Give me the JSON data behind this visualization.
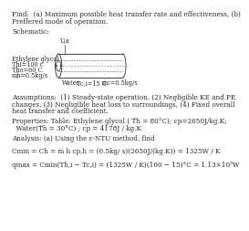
{
  "find_line1": "Find:  (a) Maximum possible heat transfer rate and effectiveness, (b)",
  "find_line2": "Preffered mode of operation.",
  "schematic_label": "Schematic:",
  "assumptions_line1": "Assumptions:  (1) Steady-state operation, (2) Negligible KE and PE",
  "assumptions_line2": "changes, (3) Negligible heat loss to surroundings, (4) Fixed overall",
  "assumptions_line3": "heat transfer and coefficient.",
  "properties_line1": "Properties: Table: Ethylene glycol ( T̅h = 80°C); cp=2650J/kg.K;",
  "properties_line2": "  Water(T̅h = 30°C) ; cp = 4178J / kg.K",
  "analysis_line": "Analysis: (a) Using the ε-NTU method, find",
  "eq1": "Cmin = Ch = ṁ h cp,h = (0.5kg/ s)(2650J/(kg.K)) = 1325W / K",
  "eq2": "qmax = Cmin(Th,i − Tc,i) = (1325W / K)(100 − 15)°C = 1.13×10⁵W",
  "label_ua": "U,a",
  "label_glycol": "Ethylene glycol",
  "label_thi": "Thi=100 c",
  "label_tho": "Tho=60 C",
  "label_mh": "ṁh=0.5kg/s",
  "label_water": "Water",
  "label_tci": "Tc,i=15 C",
  "label_mc": "ṁc=0.5kg/s",
  "font_size": 5.2,
  "text_color": "#2a2a2a",
  "bg_color": "#ffffff",
  "line_color": "#444444"
}
